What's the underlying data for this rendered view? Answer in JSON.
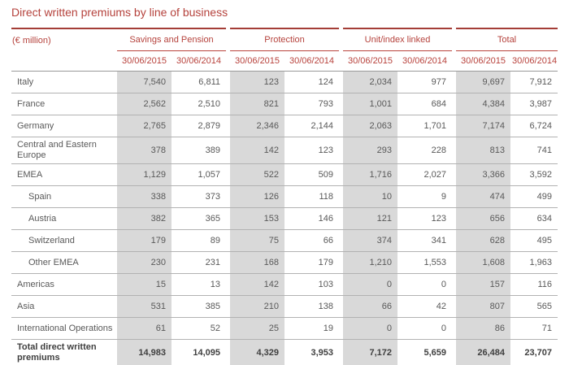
{
  "title": "Direct written premiums by line of business",
  "table": {
    "unit_label": "(€ million)",
    "groups": [
      {
        "label": "Savings and Pension"
      },
      {
        "label": "Protection"
      },
      {
        "label": "Unit/index linked"
      },
      {
        "label": "Total"
      }
    ],
    "period_2015": "30/06/2015",
    "period_2014": "30/06/2014",
    "rows": [
      {
        "label": "Italy",
        "indent": false,
        "bold": false,
        "values": [
          "7,540",
          "6,811",
          "123",
          "124",
          "2,034",
          "977",
          "9,697",
          "7,912"
        ]
      },
      {
        "label": "France",
        "indent": false,
        "bold": false,
        "values": [
          "2,562",
          "2,510",
          "821",
          "793",
          "1,001",
          "684",
          "4,384",
          "3,987"
        ]
      },
      {
        "label": "Germany",
        "indent": false,
        "bold": false,
        "values": [
          "2,765",
          "2,879",
          "2,346",
          "2,144",
          "2,063",
          "1,701",
          "7,174",
          "6,724"
        ]
      },
      {
        "label": "Central and Eastern Europe",
        "indent": false,
        "bold": false,
        "values": [
          "378",
          "389",
          "142",
          "123",
          "293",
          "228",
          "813",
          "741"
        ]
      },
      {
        "label": "EMEA",
        "indent": false,
        "bold": false,
        "values": [
          "1,129",
          "1,057",
          "522",
          "509",
          "1,716",
          "2,027",
          "3,366",
          "3,592"
        ]
      },
      {
        "label": "Spain",
        "indent": true,
        "bold": false,
        "values": [
          "338",
          "373",
          "126",
          "118",
          "10",
          "9",
          "474",
          "499"
        ]
      },
      {
        "label": "Austria",
        "indent": true,
        "bold": false,
        "values": [
          "382",
          "365",
          "153",
          "146",
          "121",
          "123",
          "656",
          "634"
        ]
      },
      {
        "label": "Switzerland",
        "indent": true,
        "bold": false,
        "values": [
          "179",
          "89",
          "75",
          "66",
          "374",
          "341",
          "628",
          "495"
        ]
      },
      {
        "label": "Other EMEA",
        "indent": true,
        "bold": false,
        "values": [
          "230",
          "231",
          "168",
          "179",
          "1,210",
          "1,553",
          "1,608",
          "1,963"
        ]
      },
      {
        "label": "Americas",
        "indent": false,
        "bold": false,
        "values": [
          "15",
          "13",
          "142",
          "103",
          "0",
          "0",
          "157",
          "116"
        ]
      },
      {
        "label": "Asia",
        "indent": false,
        "bold": false,
        "values": [
          "531",
          "385",
          "210",
          "138",
          "66",
          "42",
          "807",
          "565"
        ]
      },
      {
        "label": "International Operations",
        "indent": false,
        "bold": false,
        "values": [
          "61",
          "52",
          "25",
          "19",
          "0",
          "0",
          "86",
          "71"
        ]
      },
      {
        "label": "Total direct written premiums",
        "indent": false,
        "bold": true,
        "values": [
          "14,983",
          "14,095",
          "4,329",
          "3,953",
          "7,172",
          "5,659",
          "26,484",
          "23,707"
        ]
      }
    ]
  },
  "colors": {
    "accent_red": "#b5423c",
    "top_border_red": "#a43d37",
    "bottom_border_red": "#bf2e28",
    "shaded_column_gray": "#d9d9d9",
    "text_gray": "#595959"
  }
}
